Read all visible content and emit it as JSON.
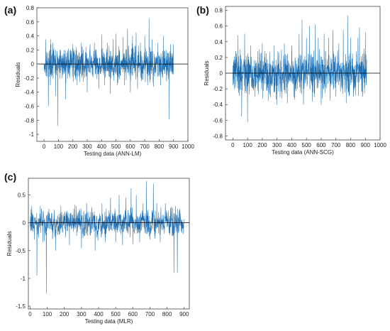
{
  "colors": {
    "series": "#1f6fb2",
    "zero_line": "#000000",
    "axes": "#444444"
  },
  "chart_data": [
    {
      "type": "line",
      "panel_label": "(a)",
      "xlabel": "Testing data (ANN-LM)",
      "ylabel": "Residuals",
      "xlim": [
        -50,
        1000
      ],
      "ylim": [
        -1.1,
        0.8
      ],
      "xticks": [
        0,
        100,
        200,
        300,
        400,
        500,
        600,
        700,
        800,
        900,
        1000
      ],
      "yticks": [
        -1,
        -0.8,
        -0.6,
        -0.4,
        -0.2,
        0,
        0.2,
        0.4,
        0.6,
        0.8
      ],
      "zero_line": true,
      "series": [
        {
          "n": 900,
          "noise_scale": 0.11,
          "spikes": [
            [
              12,
              0.35
            ],
            [
              30,
              -0.6
            ],
            [
              45,
              0.35
            ],
            [
              60,
              0.3
            ],
            [
              80,
              -0.45
            ],
            [
              95,
              -0.88
            ],
            [
              110,
              0.2
            ],
            [
              150,
              -0.5
            ],
            [
              170,
              0.22
            ],
            [
              200,
              0.28
            ],
            [
              230,
              -0.3
            ],
            [
              260,
              0.3
            ],
            [
              300,
              -0.4
            ],
            [
              320,
              0.28
            ],
            [
              350,
              0.3
            ],
            [
              380,
              -0.35
            ],
            [
              400,
              0.42
            ],
            [
              420,
              -0.3
            ],
            [
              440,
              0.3
            ],
            [
              460,
              -0.42
            ],
            [
              480,
              0.35
            ],
            [
              500,
              0.43
            ],
            [
              510,
              -0.3
            ],
            [
              520,
              0.25
            ],
            [
              550,
              0.38
            ],
            [
              560,
              -0.3
            ],
            [
              580,
              0.5
            ],
            [
              600,
              -0.4
            ],
            [
              615,
              0.4
            ],
            [
              640,
              0.45
            ],
            [
              650,
              -0.35
            ],
            [
              670,
              0.3
            ],
            [
              700,
              0.4
            ],
            [
              720,
              -0.3
            ],
            [
              730,
              0.65
            ],
            [
              750,
              0.35
            ],
            [
              760,
              -0.32
            ],
            [
              790,
              0.3
            ],
            [
              810,
              -0.3
            ],
            [
              830,
              0.4
            ],
            [
              850,
              0.2
            ],
            [
              870,
              -0.78
            ],
            [
              880,
              0.28
            ],
            [
              895,
              0.15
            ]
          ]
        }
      ]
    },
    {
      "type": "line",
      "panel_label": "(b)",
      "xlabel": "Testing data (ANN-SCG)",
      "ylabel": "Residuals",
      "xlim": [
        -50,
        1000
      ],
      "ylim": [
        -0.85,
        0.85
      ],
      "xticks": [
        0,
        100,
        200,
        300,
        400,
        500,
        600,
        700,
        800,
        900,
        1000
      ],
      "yticks": [
        -0.8,
        -0.6,
        -0.4,
        -0.2,
        0,
        0.2,
        0.4,
        0.6,
        0.8
      ],
      "zero_line": true,
      "series": [
        {
          "n": 910,
          "noise_scale": 0.13,
          "spikes": [
            [
              10,
              -0.2
            ],
            [
              20,
              0.28
            ],
            [
              35,
              0.48
            ],
            [
              50,
              0.3
            ],
            [
              60,
              -0.55
            ],
            [
              80,
              0.5
            ],
            [
              100,
              -0.62
            ],
            [
              120,
              0.35
            ],
            [
              150,
              -0.3
            ],
            [
              180,
              0.3
            ],
            [
              200,
              0.38
            ],
            [
              240,
              -0.35
            ],
            [
              280,
              0.35
            ],
            [
              300,
              -0.4
            ],
            [
              330,
              0.3
            ],
            [
              350,
              0.38
            ],
            [
              370,
              -0.38
            ],
            [
              400,
              0.35
            ],
            [
              420,
              -0.3
            ],
            [
              450,
              0.5
            ],
            [
              470,
              0.68
            ],
            [
              480,
              -0.4
            ],
            [
              500,
              0.45
            ],
            [
              520,
              0.6
            ],
            [
              540,
              -0.36
            ],
            [
              560,
              0.62
            ],
            [
              580,
              0.45
            ],
            [
              600,
              -0.4
            ],
            [
              620,
              0.5
            ],
            [
              650,
              0.45
            ],
            [
              660,
              -0.35
            ],
            [
              680,
              0.55
            ],
            [
              700,
              -0.3
            ],
            [
              720,
              0.38
            ],
            [
              750,
              0.55
            ],
            [
              770,
              -0.38
            ],
            [
              780,
              0.73
            ],
            [
              800,
              0.45
            ],
            [
              820,
              -0.3
            ],
            [
              850,
              0.45
            ],
            [
              860,
              0.58
            ],
            [
              880,
              -0.3
            ],
            [
              900,
              0.52
            ],
            [
              905,
              -0.15
            ]
          ]
        }
      ]
    },
    {
      "type": "line",
      "panel_label": "(c)",
      "xlabel": "Testing data (MLR)",
      "ylabel": "Residuals",
      "xlim": [
        -10,
        930
      ],
      "ylim": [
        -1.55,
        0.8
      ],
      "xticks": [
        0,
        100,
        200,
        300,
        400,
        500,
        600,
        700,
        800,
        900
      ],
      "yticks": [
        -1.5,
        -1,
        -0.5,
        0,
        0.5
      ],
      "zero_line": true,
      "series": [
        {
          "n": 900,
          "noise_scale": 0.12,
          "spikes": [
            [
              10,
              0.3
            ],
            [
              25,
              -0.3
            ],
            [
              40,
              -0.95
            ],
            [
              60,
              0.3
            ],
            [
              75,
              -0.35
            ],
            [
              95,
              -1.27
            ],
            [
              110,
              0.25
            ],
            [
              150,
              -0.5
            ],
            [
              180,
              0.3
            ],
            [
              230,
              -0.4
            ],
            [
              270,
              0.3
            ],
            [
              300,
              -0.45
            ],
            [
              330,
              0.35
            ],
            [
              360,
              0.28
            ],
            [
              380,
              -0.5
            ],
            [
              420,
              0.35
            ],
            [
              440,
              -0.35
            ],
            [
              470,
              0.45
            ],
            [
              500,
              -0.35
            ],
            [
              520,
              0.5
            ],
            [
              540,
              -0.4
            ],
            [
              560,
              0.45
            ],
            [
              590,
              0.62
            ],
            [
              600,
              -0.38
            ],
            [
              620,
              0.5
            ],
            [
              640,
              -0.35
            ],
            [
              660,
              0.35
            ],
            [
              680,
              0.75
            ],
            [
              700,
              -0.3
            ],
            [
              720,
              0.7
            ],
            [
              740,
              0.35
            ],
            [
              760,
              -0.35
            ],
            [
              790,
              0.35
            ],
            [
              840,
              -0.9
            ],
            [
              850,
              0.3
            ],
            [
              860,
              -0.9
            ],
            [
              875,
              0.25
            ],
            [
              890,
              -0.1
            ]
          ]
        }
      ]
    }
  ]
}
